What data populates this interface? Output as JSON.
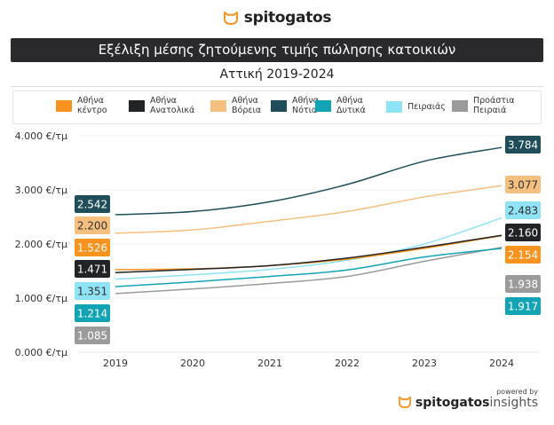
{
  "header": {
    "logo_text": "spitogatos",
    "title": "Εξέλιξη μέσης ζητούμενης τιμής πώλησης κατοικιών",
    "subtitle": "Αττική 2019-2024"
  },
  "footer": {
    "powered_by": "powered by",
    "brand": "spitogatos",
    "brand_suffix": "insights"
  },
  "colors": {
    "accent": "#f7931e"
  },
  "chart_data": {
    "type": "line",
    "title": "Εξέλιξη μέσης ζητούμενης τιμής πώλησης κατοικιών",
    "subtitle": "Αττική 2019-2024",
    "xlabel": "",
    "ylabel": "€/τμ",
    "x": [
      "2019",
      "2020",
      "2021",
      "2022",
      "2023",
      "2024"
    ],
    "ylim": [
      0,
      4000
    ],
    "yticks": [
      0,
      1000,
      2000,
      3000,
      4000
    ],
    "ytick_labels": [
      "0.000 €/τμ",
      "1.000 €/τμ",
      "2.000 €/τμ",
      "3.000 €/τμ",
      "4.000 €/τμ"
    ],
    "grid": true,
    "legend_position": "top",
    "series": [
      {
        "name": "Αθήνα κέντρο",
        "label_lines": [
          "Αθήνα",
          "κέντρο"
        ],
        "color": "#f7931e",
        "label_text_color": "#ffffff",
        "values": [
          1526,
          1540,
          1600,
          1720,
          1920,
          2154
        ],
        "start_label": "1.526",
        "end_label": "2.154"
      },
      {
        "name": "Αθήνα Ανατολικά",
        "label_lines": [
          "Αθήνα",
          "Ανατολικά"
        ],
        "color": "#222326",
        "label_text_color": "#ffffff",
        "values": [
          1471,
          1530,
          1600,
          1740,
          1940,
          2160
        ],
        "start_label": "1.471",
        "end_label": "2.160"
      },
      {
        "name": "Αθήνα Βόρεια",
        "label_lines": [
          "Αθήνα",
          "Βόρεια"
        ],
        "color": "#f5c07f",
        "label_text_color": "#333333",
        "values": [
          2200,
          2260,
          2420,
          2600,
          2870,
          3077
        ],
        "start_label": "2.200",
        "end_label": "3.077"
      },
      {
        "name": "Αθήνα Νότια",
        "label_lines": [
          "Αθήνα",
          "Νότια"
        ],
        "color": "#1f4e5a",
        "label_text_color": "#ffffff",
        "values": [
          2542,
          2600,
          2780,
          3100,
          3530,
          3784
        ],
        "start_label": "2.542",
        "end_label": "3.784"
      },
      {
        "name": "Αθήνα Δυτικά",
        "label_lines": [
          "Αθήνα",
          "Δυτικά"
        ],
        "color": "#12a4b5",
        "label_text_color": "#ffffff",
        "values": [
          1214,
          1300,
          1400,
          1520,
          1760,
          1917
        ],
        "start_label": "1.214",
        "end_label": "1.917"
      },
      {
        "name": "Πειραιάς",
        "label_lines": [
          "Πειραιάς"
        ],
        "color": "#8ee4f5",
        "label_text_color": "#333333",
        "values": [
          1351,
          1430,
          1530,
          1700,
          2000,
          2483
        ],
        "start_label": "1.351",
        "end_label": "2.483"
      },
      {
        "name": "Προάστια Πειραιά",
        "label_lines": [
          "Προάστια",
          "Πειραιά"
        ],
        "color": "#9b9b9b",
        "label_text_color": "#ffffff",
        "values": [
          1085,
          1170,
          1270,
          1400,
          1680,
          1938
        ],
        "start_label": "1.085",
        "end_label": "1.938"
      }
    ],
    "start_label_order": [
      3,
      2,
      0,
      1,
      5,
      4,
      6
    ],
    "end_label_order": [
      3,
      2,
      5,
      1,
      0,
      6,
      4
    ]
  }
}
